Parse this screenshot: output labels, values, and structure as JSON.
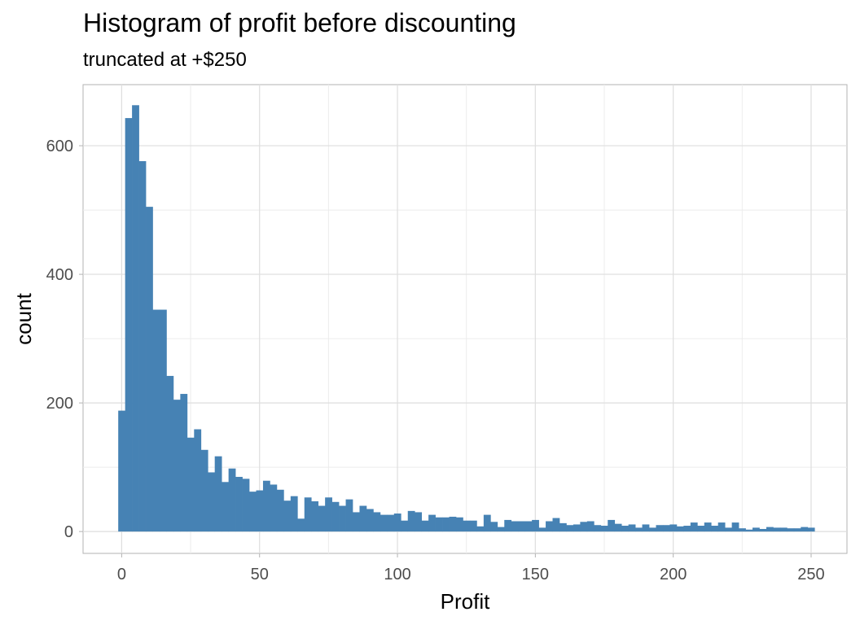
{
  "chart_data": {
    "type": "bar",
    "title": "Histogram of profit before discounting",
    "subtitle": "truncated at +$250",
    "xlabel": "Profit",
    "ylabel": "count",
    "xlim": [
      -14,
      263
    ],
    "ylim": [
      -34,
      695
    ],
    "x_ticks": [
      0,
      50,
      100,
      150,
      200,
      250
    ],
    "y_ticks": [
      0,
      200,
      400,
      600
    ],
    "grid": true,
    "bar_color": "#4682B4",
    "bin_width": 2.5,
    "first_bin_left": -1.25,
    "values": [
      188,
      643,
      663,
      576,
      505,
      345,
      345,
      242,
      205,
      214,
      146,
      159,
      127,
      92,
      117,
      77,
      98,
      85,
      82,
      62,
      64,
      79,
      73,
      65,
      48,
      55,
      20,
      53,
      47,
      40,
      53,
      46,
      40,
      50,
      30,
      40,
      35,
      30,
      26,
      26,
      28,
      17,
      32,
      30,
      17,
      26,
      22,
      22,
      23,
      22,
      17,
      17,
      8,
      26,
      15,
      7,
      18,
      16,
      16,
      16,
      18,
      6,
      16,
      21,
      13,
      10,
      11,
      15,
      16,
      10,
      9,
      18,
      12,
      9,
      11,
      6,
      11,
      6,
      10,
      10,
      11,
      8,
      9,
      14,
      9,
      14,
      9,
      14,
      6,
      14,
      5,
      3,
      6,
      4,
      7,
      6,
      6,
      5,
      5,
      7,
      6
    ]
  }
}
